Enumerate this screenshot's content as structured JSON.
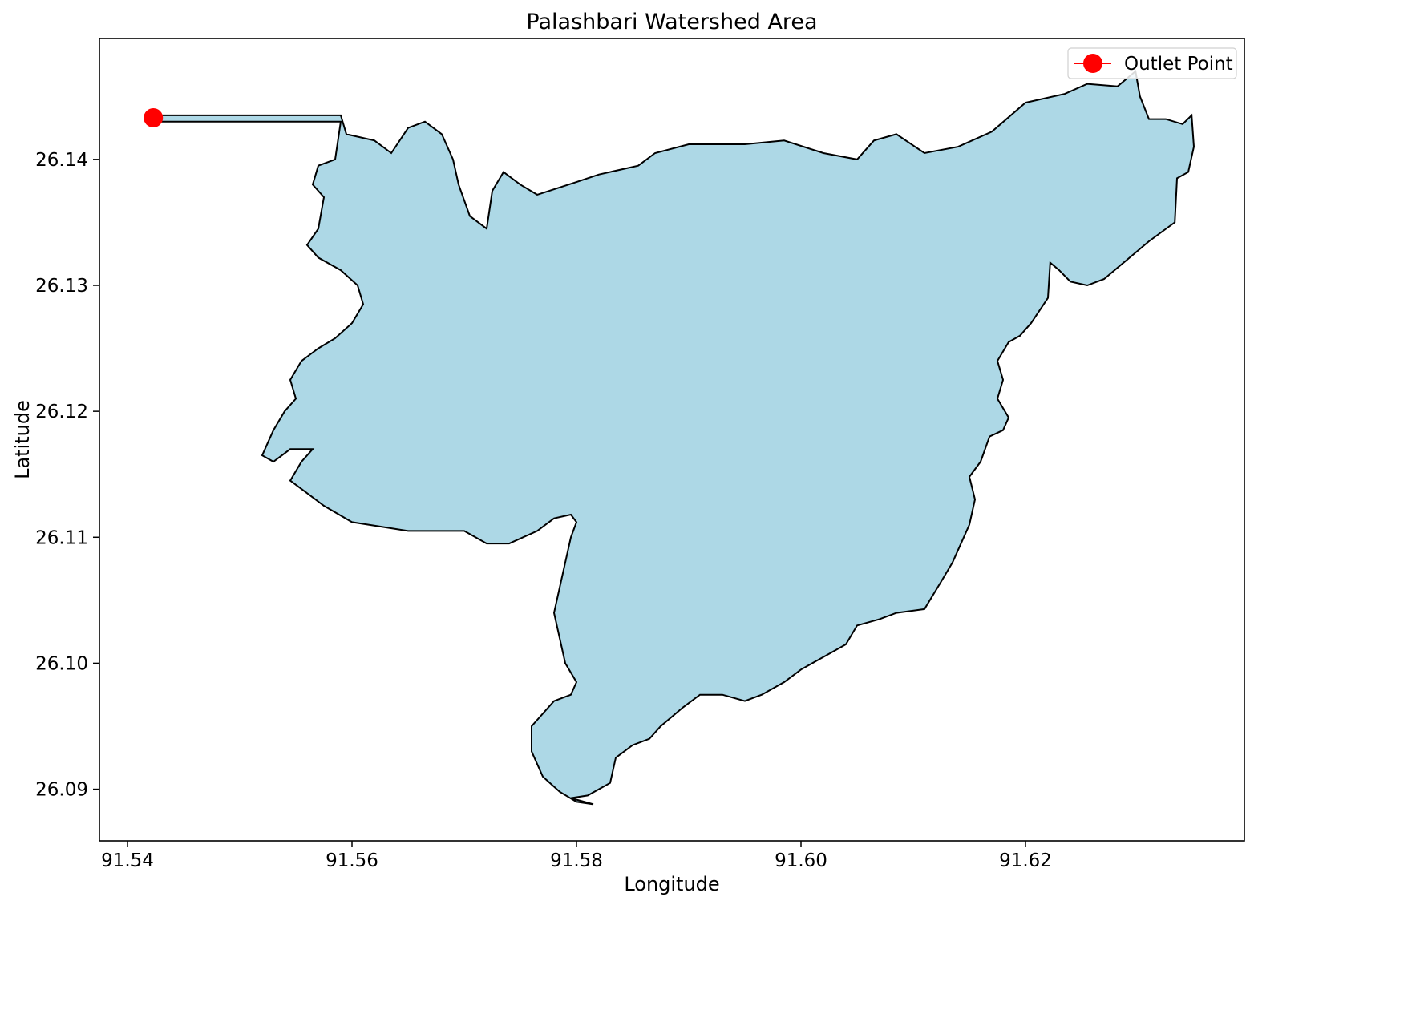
{
  "chart_data": {
    "type": "map",
    "title": "Palashbari Watershed Area",
    "xlabel": "Longitude",
    "ylabel": "Latitude",
    "xlim": [
      91.5375,
      91.6395
    ],
    "ylim": [
      26.0859,
      26.1496
    ],
    "xticks": [
      91.54,
      91.56,
      91.58,
      91.6,
      91.62
    ],
    "xtick_labels": [
      "91.54",
      "91.56",
      "91.58",
      "91.60",
      "91.62"
    ],
    "yticks": [
      26.09,
      26.1,
      26.11,
      26.12,
      26.13,
      26.14
    ],
    "ytick_labels": [
      "26.09",
      "26.10",
      "26.11",
      "26.12",
      "26.13",
      "26.14"
    ],
    "grid": false,
    "legend": {
      "position": "top-right",
      "entries": [
        "Outlet Point"
      ]
    },
    "colors": {
      "fill": "#add8e6",
      "edge": "#000000",
      "outlet": "#ff0000"
    },
    "outlet_point": {
      "name": "Outlet Point",
      "lon": 91.5423,
      "lat": 26.1433
    },
    "watershed_boundary": [
      [
        91.5425,
        26.1435
      ],
      [
        91.559,
        26.1435
      ],
      [
        91.5595,
        26.142
      ],
      [
        91.562,
        26.1415
      ],
      [
        91.5635,
        26.1405
      ],
      [
        91.565,
        26.1425
      ],
      [
        91.5665,
        26.143
      ],
      [
        91.568,
        26.142
      ],
      [
        91.569,
        26.14
      ],
      [
        91.5695,
        26.138
      ],
      [
        91.5705,
        26.1355
      ],
      [
        91.572,
        26.1345
      ],
      [
        91.5725,
        26.1375
      ],
      [
        91.5735,
        26.139
      ],
      [
        91.575,
        26.138
      ],
      [
        91.5765,
        26.1372
      ],
      [
        91.58,
        26.1382
      ],
      [
        91.582,
        26.1388
      ],
      [
        91.5855,
        26.1395
      ],
      [
        91.587,
        26.1405
      ],
      [
        91.59,
        26.1412
      ],
      [
        91.595,
        26.1412
      ],
      [
        91.5985,
        26.1415
      ],
      [
        91.602,
        26.1405
      ],
      [
        91.605,
        26.14
      ],
      [
        91.6065,
        26.1415
      ],
      [
        91.6085,
        26.142
      ],
      [
        91.611,
        26.1405
      ],
      [
        91.614,
        26.141
      ],
      [
        91.617,
        26.1422
      ],
      [
        91.62,
        26.1445
      ],
      [
        91.6235,
        26.1452
      ],
      [
        91.6255,
        26.146
      ],
      [
        91.6282,
        26.1458
      ],
      [
        91.6298,
        26.147
      ],
      [
        91.6302,
        26.145
      ],
      [
        91.631,
        26.1432
      ],
      [
        91.6325,
        26.1432
      ],
      [
        91.634,
        26.1428
      ],
      [
        91.6348,
        26.1435
      ],
      [
        91.635,
        26.141
      ],
      [
        91.6345,
        26.139
      ],
      [
        91.6335,
        26.1385
      ],
      [
        91.6333,
        26.135
      ],
      [
        91.631,
        26.1335
      ],
      [
        91.629,
        26.132
      ],
      [
        91.627,
        26.1305
      ],
      [
        91.6255,
        26.13
      ],
      [
        91.624,
        26.1303
      ],
      [
        91.623,
        26.1312
      ],
      [
        91.6222,
        26.1318
      ],
      [
        91.622,
        26.129
      ],
      [
        91.6205,
        26.127
      ],
      [
        91.6195,
        26.126
      ],
      [
        91.6185,
        26.1255
      ],
      [
        91.6175,
        26.124
      ],
      [
        91.618,
        26.1225
      ],
      [
        91.6175,
        26.121
      ],
      [
        91.6185,
        26.1195
      ],
      [
        91.618,
        26.1185
      ],
      [
        91.6168,
        26.118
      ],
      [
        91.616,
        26.116
      ],
      [
        91.615,
        26.1148
      ],
      [
        91.6155,
        26.113
      ],
      [
        91.615,
        26.111
      ],
      [
        91.6145,
        26.11
      ],
      [
        91.6135,
        26.108
      ],
      [
        91.6125,
        26.1065
      ],
      [
        91.611,
        26.1043
      ],
      [
        91.6085,
        26.104
      ],
      [
        91.607,
        26.1035
      ],
      [
        91.605,
        26.103
      ],
      [
        91.604,
        26.1015
      ],
      [
        91.602,
        26.1005
      ],
      [
        91.6,
        26.0995
      ],
      [
        91.5985,
        26.0985
      ],
      [
        91.5965,
        26.0975
      ],
      [
        91.595,
        26.097
      ],
      [
        91.593,
        26.0975
      ],
      [
        91.591,
        26.0975
      ],
      [
        91.5895,
        26.0965
      ],
      [
        91.5875,
        26.095
      ],
      [
        91.5865,
        26.094
      ],
      [
        91.585,
        26.0935
      ],
      [
        91.5835,
        26.0925
      ],
      [
        91.583,
        26.0905
      ],
      [
        91.581,
        26.0895
      ],
      [
        91.5795,
        26.0893
      ],
      [
        91.5815,
        26.0888
      ],
      [
        91.58,
        26.089
      ],
      [
        91.5785,
        26.0898
      ],
      [
        91.577,
        26.091
      ],
      [
        91.576,
        26.093
      ],
      [
        91.576,
        26.095
      ],
      [
        91.578,
        26.097
      ],
      [
        91.5795,
        26.0975
      ],
      [
        91.58,
        26.0985
      ],
      [
        91.579,
        26.1
      ],
      [
        91.5785,
        26.102
      ],
      [
        91.578,
        26.104
      ],
      [
        91.5785,
        26.106
      ],
      [
        91.579,
        26.108
      ],
      [
        91.5795,
        26.11
      ],
      [
        91.58,
        26.1112
      ],
      [
        91.5795,
        26.1118
      ],
      [
        91.578,
        26.1115
      ],
      [
        91.5765,
        26.1105
      ],
      [
        91.574,
        26.1095
      ],
      [
        91.572,
        26.1095
      ],
      [
        91.57,
        26.1105
      ],
      [
        91.565,
        26.1105
      ],
      [
        91.56,
        26.1112
      ],
      [
        91.5575,
        26.1125
      ],
      [
        91.5545,
        26.1145
      ],
      [
        91.5555,
        26.116
      ],
      [
        91.5565,
        26.117
      ],
      [
        91.5545,
        26.117
      ],
      [
        91.553,
        26.116
      ],
      [
        91.552,
        26.1165
      ],
      [
        91.553,
        26.1185
      ],
      [
        91.554,
        26.12
      ],
      [
        91.555,
        26.121
      ],
      [
        91.5545,
        26.1225
      ],
      [
        91.5555,
        26.124
      ],
      [
        91.557,
        26.125
      ],
      [
        91.5585,
        26.1258
      ],
      [
        91.56,
        26.127
      ],
      [
        91.561,
        26.1285
      ],
      [
        91.5605,
        26.13
      ],
      [
        91.559,
        26.1312
      ],
      [
        91.557,
        26.1322
      ],
      [
        91.556,
        26.1332
      ],
      [
        91.557,
        26.1345
      ],
      [
        91.5575,
        26.137
      ],
      [
        91.5565,
        26.138
      ],
      [
        91.557,
        26.1395
      ],
      [
        91.5585,
        26.14
      ],
      [
        91.559,
        26.143
      ],
      [
        91.5425,
        26.143
      ]
    ]
  }
}
